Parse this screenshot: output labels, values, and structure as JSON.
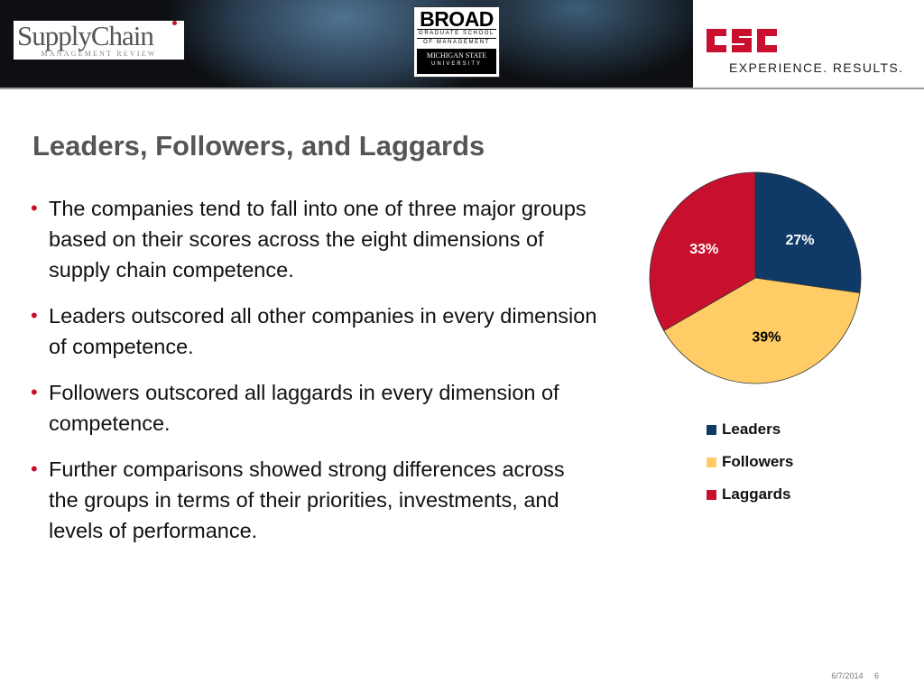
{
  "header": {
    "scm_logo": {
      "main": "SupplyChain",
      "sub": "MANAGEMENT REVIEW"
    },
    "broad_logo": {
      "word": "BROAD",
      "line1": "GRADUATE SCHOOL",
      "line2": "OF MANAGEMENT",
      "msu1": "MICHIGAN STATE",
      "msu2": "UNIVERSITY"
    },
    "csc_logo": {
      "word": "csc",
      "color": "#c8102e"
    },
    "tagline": "EXPERIENCE. RESULTS."
  },
  "slide": {
    "title": "Leaders, Followers, and Laggards",
    "bullet_marker": "•",
    "bullets": [
      "The companies tend to fall into one of three major groups based on their scores across the eight dimensions of supply chain competence.",
      "Leaders outscored all other companies in every dimension of competence.",
      "Followers outscored all laggards in every dimension of competence.",
      "Further comparisons showed strong differences across the groups in terms of their priorities, investments, and levels of performance."
    ]
  },
  "chart_data": {
    "type": "pie",
    "title": "",
    "categories": [
      "Leaders",
      "Followers",
      "Laggards"
    ],
    "values": [
      27,
      39,
      33
    ],
    "labels": [
      "27%",
      "39%",
      "33%"
    ],
    "colors": [
      "#0f3a68",
      "#ffcc66",
      "#c8102e"
    ],
    "label_colors": [
      "#ffffff",
      "#000000",
      "#ffffff"
    ],
    "legend_position": "bottom-right"
  },
  "footer": {
    "date": "6/7/2014",
    "page": "6"
  }
}
